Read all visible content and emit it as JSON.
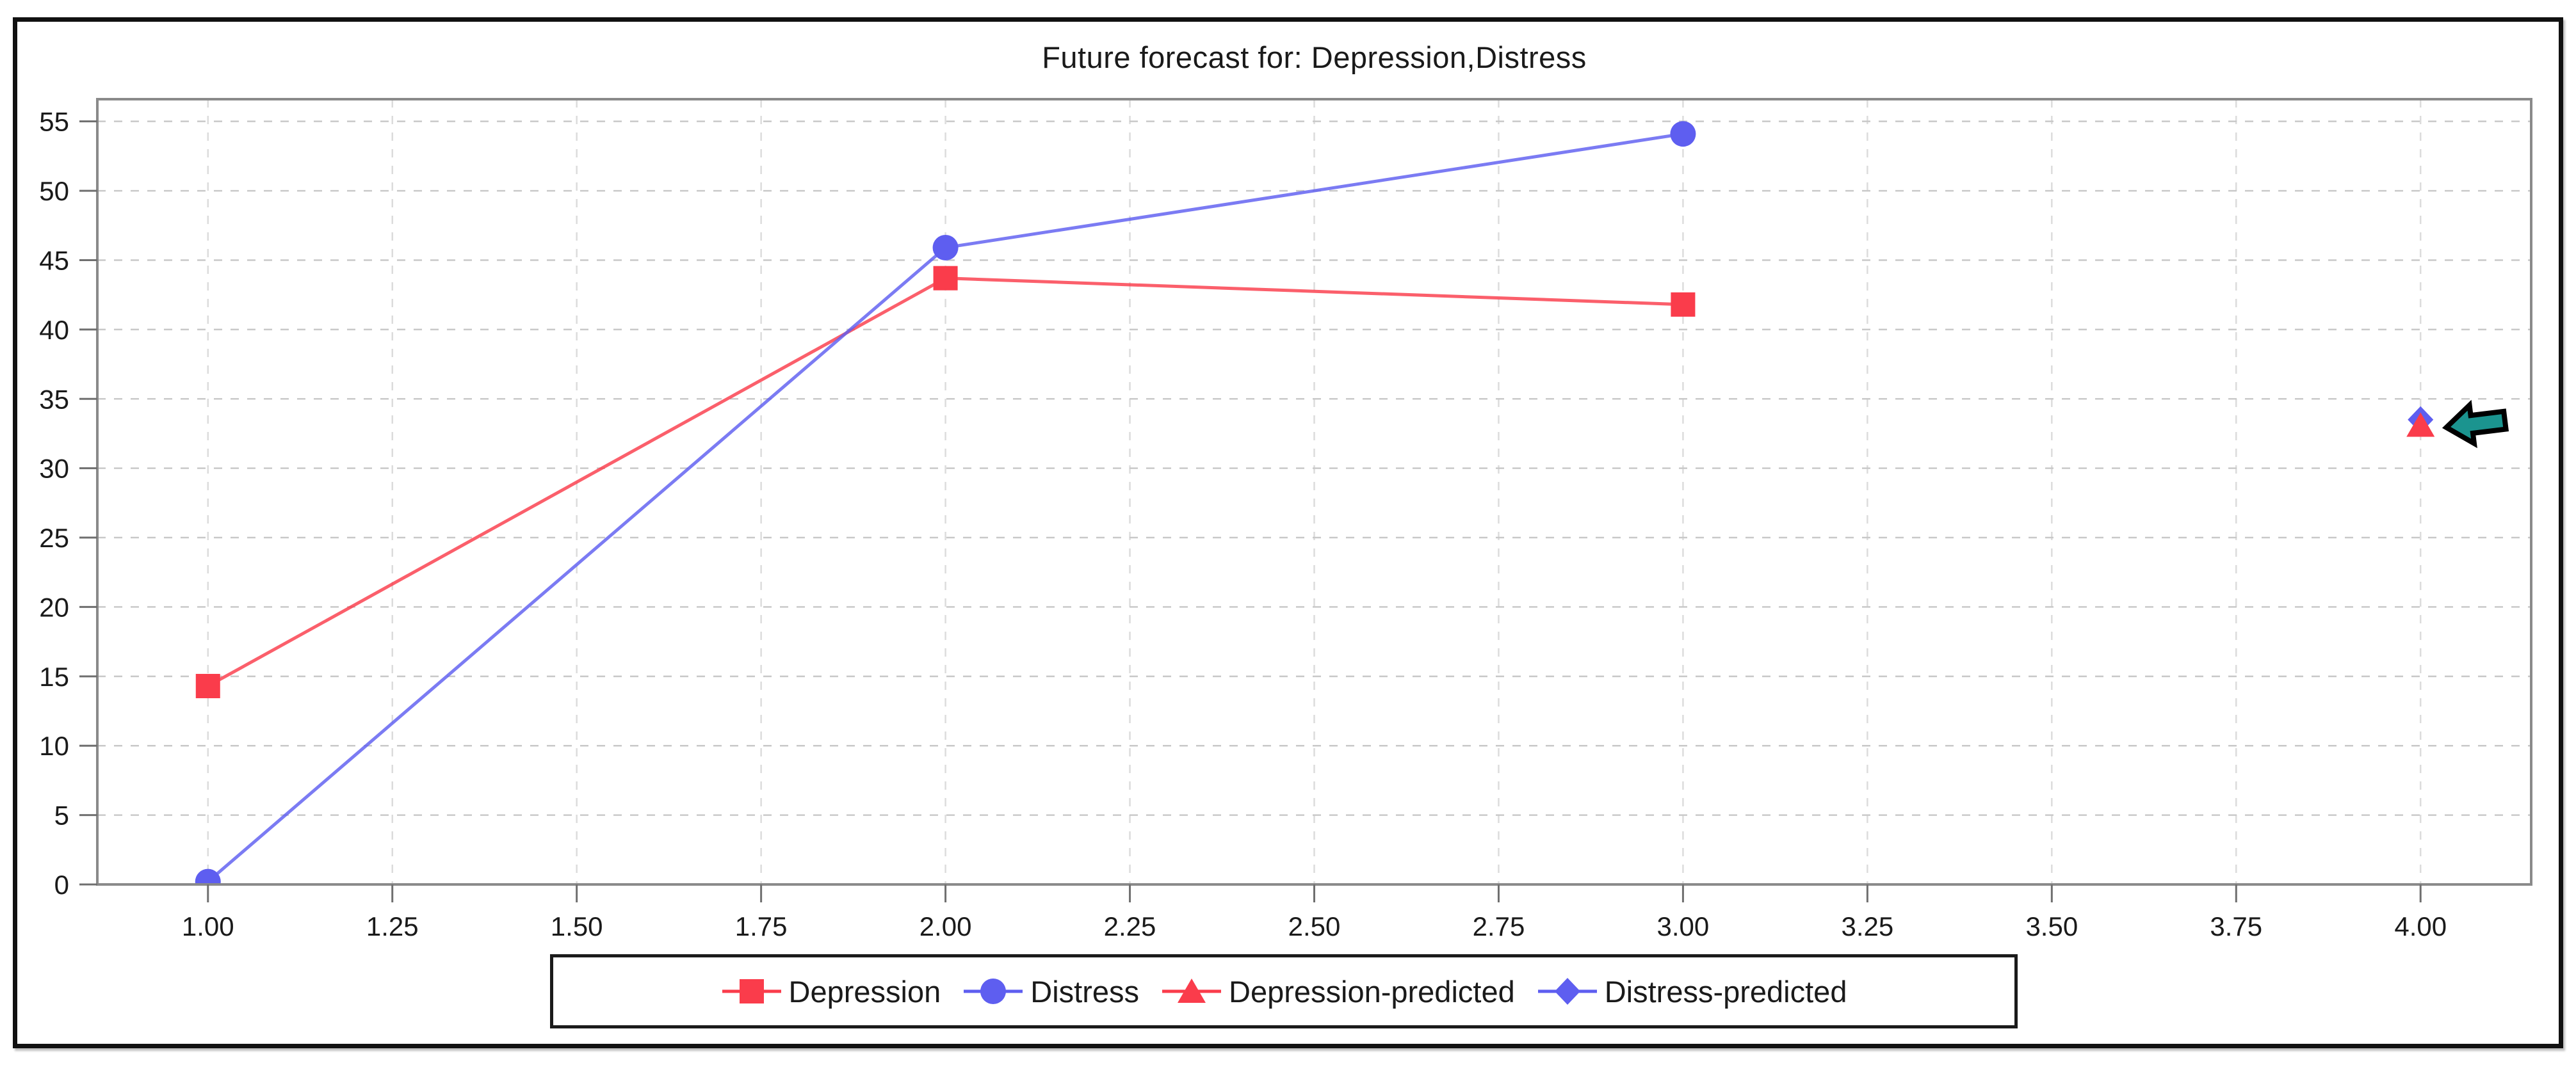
{
  "chart_data": {
    "type": "line",
    "title": "Future forecast for: Depression,Distress",
    "xlabel": "",
    "ylabel": "",
    "xlim": [
      0.85,
      4.15
    ],
    "ylim": [
      0,
      56.6
    ],
    "grid": "dashed gridlines at every x tick and every y tick",
    "legend_position": "bottom-center",
    "x_ticks": [
      1.0,
      1.25,
      1.5,
      1.75,
      2.0,
      2.25,
      2.5,
      2.75,
      3.0,
      3.25,
      3.5,
      3.75,
      4.0
    ],
    "x_tick_labels": [
      "1.00",
      "1.25",
      "1.50",
      "1.75",
      "2.00",
      "2.25",
      "2.50",
      "2.75",
      "3.00",
      "3.25",
      "3.50",
      "3.75",
      "4.00"
    ],
    "y_ticks": [
      0,
      5,
      10,
      15,
      20,
      25,
      30,
      35,
      40,
      45,
      50,
      55
    ],
    "y_tick_labels": [
      "0",
      "5",
      "10",
      "15",
      "20",
      "25",
      "30",
      "35",
      "40",
      "45",
      "50",
      "55"
    ],
    "series": [
      {
        "name": "Depression",
        "marker": "square",
        "color": "#FA3C4B",
        "line": true,
        "x": [
          1,
          2,
          3
        ],
        "y": [
          14.3,
          43.7,
          41.8
        ]
      },
      {
        "name": "Distress",
        "marker": "circle",
        "color": "#5E5EF0",
        "line": true,
        "x": [
          1,
          2,
          3
        ],
        "y": [
          0.2,
          45.9,
          54.1
        ]
      },
      {
        "name": "Depression-predicted",
        "marker": "triangle",
        "color": "#FA3C4B",
        "line": false,
        "x": [
          4
        ],
        "y": [
          33.1
        ]
      },
      {
        "name": "Distress-predicted",
        "marker": "diamond",
        "color": "#5E5EF0",
        "line": false,
        "x": [
          4
        ],
        "y": [
          33.5
        ]
      }
    ],
    "annotation": {
      "name": "left-arrow-marker",
      "shape": "arrow-pointing-left",
      "fill": "#1B948F",
      "outline": "#000000",
      "points_at": {
        "x": 4.0,
        "y": 33.2
      }
    }
  },
  "style_colors": {
    "grid_horizontal": "#c9c9c9",
    "grid_vertical": "#dcdcdc",
    "plot_border": "#8a8a8a",
    "tick": "#6f6f6f",
    "outer_border": "#111111",
    "text": "#1a1a1a"
  }
}
